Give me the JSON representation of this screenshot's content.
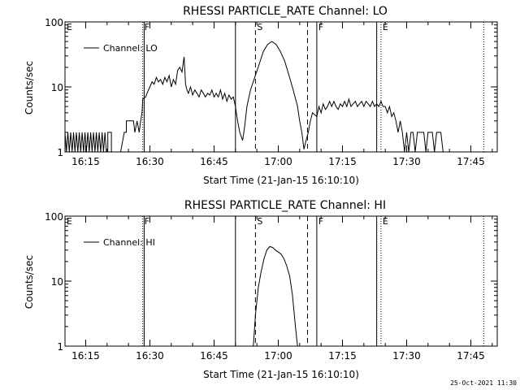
{
  "footer": {
    "timestamp": "25-Oct-2021 11:30"
  },
  "chart_data": [
    {
      "type": "line",
      "title": "RHESSI PARTICLE_RATE Channel: LO",
      "xlabel": "Start Time (21-Jan-15 16:10:10)",
      "ylabel": "Counts/sec",
      "y_scale": "log",
      "ylim": [
        1,
        100
      ],
      "xlim": [
        "16:10:10",
        "17:51:10"
      ],
      "x_ticks": [
        "16:15",
        "16:30",
        "16:45",
        "17:00",
        "17:15",
        "17:30",
        "17:45"
      ],
      "y_ticks": [
        "1",
        "10",
        "100"
      ],
      "legend": {
        "position": "top-left",
        "entries": [
          "Channel: LO"
        ]
      },
      "series": [
        {
          "name": "Channel: LO",
          "points": [
            [
              "16:10:10",
              1
            ],
            [
              "16:10:10",
              2
            ],
            [
              "16:10:30",
              1
            ],
            [
              "16:10:50",
              2
            ],
            [
              "16:11:10",
              1
            ],
            [
              "16:11:30",
              2
            ],
            [
              "16:11:50",
              1
            ],
            [
              "16:12:10",
              2
            ],
            [
              "16:12:30",
              1
            ],
            [
              "16:12:50",
              2
            ],
            [
              "16:13:10",
              1
            ],
            [
              "16:13:30",
              2
            ],
            [
              "16:13:50",
              1
            ],
            [
              "16:14:10",
              2
            ],
            [
              "16:14:30",
              1
            ],
            [
              "16:14:50",
              2
            ],
            [
              "16:15:10",
              1
            ],
            [
              "16:15:30",
              2
            ],
            [
              "16:15:50",
              1
            ],
            [
              "16:16:10",
              2
            ],
            [
              "16:16:30",
              1
            ],
            [
              "16:16:50",
              2
            ],
            [
              "16:17:10",
              1
            ],
            [
              "16:17:30",
              2
            ],
            [
              "16:17:50",
              1
            ],
            [
              "16:18:10",
              2
            ],
            [
              "16:18:30",
              1
            ],
            [
              "16:18:50",
              2
            ],
            [
              "16:19:10",
              1
            ],
            [
              "16:19:30",
              2
            ],
            [
              "16:19:50",
              1
            ],
            [
              "16:20:10",
              1
            ],
            [
              "16:20:10",
              2
            ],
            [
              "16:21:00",
              2
            ],
            [
              "16:21:00",
              1
            ],
            [
              "16:23:10",
              1
            ],
            [
              "16:24:00",
              2
            ],
            [
              "16:24:30",
              2
            ],
            [
              "16:24:30",
              3
            ],
            [
              "16:26:10",
              3
            ],
            [
              "16:26:30",
              2
            ],
            [
              "16:27:00",
              3
            ],
            [
              "16:27:30",
              2
            ],
            [
              "16:27:50",
              3
            ],
            [
              "16:28:10",
              4
            ],
            [
              "16:28:20",
              6.5
            ],
            [
              "16:29:00",
              7
            ],
            [
              "16:29:30",
              8.5
            ],
            [
              "16:30:00",
              10
            ],
            [
              "16:30:30",
              12
            ],
            [
              "16:31:00",
              11
            ],
            [
              "16:31:30",
              14
            ],
            [
              "16:32:00",
              12
            ],
            [
              "16:32:30",
              13
            ],
            [
              "16:33:00",
              11
            ],
            [
              "16:33:30",
              14
            ],
            [
              "16:34:00",
              12
            ],
            [
              "16:34:30",
              15
            ],
            [
              "16:35:00",
              10
            ],
            [
              "16:35:30",
              13
            ],
            [
              "16:36:00",
              11
            ],
            [
              "16:36:30",
              18
            ],
            [
              "16:37:00",
              20
            ],
            [
              "16:37:30",
              17
            ],
            [
              "16:38:00",
              29
            ],
            [
              "16:38:20",
              11
            ],
            [
              "16:38:40",
              9
            ],
            [
              "16:39:00",
              8
            ],
            [
              "16:39:30",
              10
            ],
            [
              "16:40:00",
              7.5
            ],
            [
              "16:40:30",
              9
            ],
            [
              "16:41:00",
              8
            ],
            [
              "16:41:30",
              7
            ],
            [
              "16:42:00",
              9
            ],
            [
              "16:42:30",
              8
            ],
            [
              "16:43:00",
              7
            ],
            [
              "16:43:30",
              8
            ],
            [
              "16:44:00",
              7.5
            ],
            [
              "16:44:30",
              9
            ],
            [
              "16:45:00",
              7
            ],
            [
              "16:45:30",
              8
            ],
            [
              "16:46:00",
              7
            ],
            [
              "16:46:30",
              9
            ],
            [
              "16:47:00",
              6.5
            ],
            [
              "16:47:30",
              8
            ],
            [
              "16:48:00",
              6
            ],
            [
              "16:48:30",
              7.5
            ],
            [
              "16:49:00",
              6.5
            ],
            [
              "16:49:30",
              7
            ],
            [
              "16:50:00",
              5
            ],
            [
              "16:50:30",
              3
            ],
            [
              "16:51:00",
              2
            ],
            [
              "16:51:40",
              1.5
            ],
            [
              "16:52:10",
              2.5
            ],
            [
              "16:52:40",
              5
            ],
            [
              "16:53:30",
              9
            ],
            [
              "16:54:30",
              14
            ],
            [
              "16:55:30",
              22
            ],
            [
              "16:56:30",
              35
            ],
            [
              "16:57:30",
              45
            ],
            [
              "16:58:30",
              50
            ],
            [
              "16:59:30",
              45
            ],
            [
              "17:00:30",
              35
            ],
            [
              "17:01:30",
              25
            ],
            [
              "17:02:30",
              15
            ],
            [
              "17:03:30",
              9
            ],
            [
              "17:04:30",
              5
            ],
            [
              "17:05:00",
              3
            ],
            [
              "17:05:30",
              2
            ],
            [
              "17:06:00",
              1.1
            ],
            [
              "17:06:30",
              1.5
            ],
            [
              "17:07:00",
              2
            ],
            [
              "17:07:30",
              3
            ],
            [
              "17:08:00",
              4
            ],
            [
              "17:09:00",
              3.5
            ],
            [
              "17:09:30",
              5
            ],
            [
              "17:10:00",
              4
            ],
            [
              "17:10:30",
              5.5
            ],
            [
              "17:11:00",
              4.5
            ],
            [
              "17:11:30",
              5
            ],
            [
              "17:12:00",
              6
            ],
            [
              "17:12:30",
              5
            ],
            [
              "17:13:00",
              6
            ],
            [
              "17:13:30",
              5
            ],
            [
              "17:14:00",
              4.5
            ],
            [
              "17:14:30",
              5.5
            ],
            [
              "17:15:00",
              5
            ],
            [
              "17:15:30",
              6
            ],
            [
              "17:16:00",
              5
            ],
            [
              "17:16:30",
              6.5
            ],
            [
              "17:17:00",
              5
            ],
            [
              "17:17:30",
              5.5
            ],
            [
              "17:18:00",
              6
            ],
            [
              "17:18:30",
              5
            ],
            [
              "17:19:00",
              5.5
            ],
            [
              "17:19:30",
              6
            ],
            [
              "17:20:00",
              5
            ],
            [
              "17:20:30",
              6
            ],
            [
              "17:21:00",
              5.5
            ],
            [
              "17:21:30",
              5
            ],
            [
              "17:22:00",
              6
            ],
            [
              "17:22:30",
              5
            ],
            [
              "17:23:00",
              5.5
            ],
            [
              "17:23:30",
              5
            ],
            [
              "17:24:00",
              6
            ],
            [
              "17:24:30",
              5
            ],
            [
              "17:25:00",
              5
            ],
            [
              "17:25:30",
              4
            ],
            [
              "17:26:00",
              5
            ],
            [
              "17:26:30",
              3.5
            ],
            [
              "17:27:00",
              4
            ],
            [
              "17:27:30",
              3
            ],
            [
              "17:28:00",
              2
            ],
            [
              "17:28:30",
              3
            ],
            [
              "17:29:00",
              2
            ],
            [
              "17:29:30",
              1
            ],
            [
              "17:30:00",
              2
            ],
            [
              "17:30:30",
              1
            ],
            [
              "17:31:00",
              2
            ],
            [
              "17:31:30",
              2
            ],
            [
              "17:32:00",
              1
            ],
            [
              "17:32:30",
              2
            ],
            [
              "17:33:00",
              2
            ],
            [
              "17:34:00",
              2
            ],
            [
              "17:34:30",
              1
            ],
            [
              "17:35:00",
              2
            ],
            [
              "17:36:00",
              2
            ],
            [
              "17:36:30",
              1
            ],
            [
              "17:37:00",
              2
            ],
            [
              "17:38:00",
              2
            ],
            [
              "17:38:30",
              1
            ]
          ]
        }
      ],
      "annotations": [
        {
          "label": "E",
          "time": "16:10:10",
          "style": "dotted"
        },
        {
          "label": "F",
          "time": "16:28:20",
          "style": "dotted"
        },
        {
          "label": "",
          "time": "16:28:40",
          "style": "solid"
        },
        {
          "label": "",
          "time": "16:50:00",
          "style": "solid"
        },
        {
          "label": "S",
          "time": "16:54:40",
          "style": "dashed"
        },
        {
          "label": "",
          "time": "17:06:50",
          "style": "dashed"
        },
        {
          "label": "F",
          "time": "17:09:00",
          "style": "solid"
        },
        {
          "label": "",
          "time": "17:23:00",
          "style": "solid"
        },
        {
          "label": "E",
          "time": "17:24:00",
          "style": "dotted"
        },
        {
          "label": "",
          "time": "17:48:00",
          "style": "dotted"
        }
      ]
    },
    {
      "type": "line",
      "title": "RHESSI PARTICLE_RATE Channel: HI",
      "xlabel": "Start Time (21-Jan-15 16:10:10)",
      "ylabel": "Counts/sec",
      "y_scale": "log",
      "ylim": [
        1,
        100
      ],
      "xlim": [
        "16:10:10",
        "17:51:10"
      ],
      "x_ticks": [
        "16:15",
        "16:30",
        "16:45",
        "17:00",
        "17:15",
        "17:30",
        "17:45"
      ],
      "y_ticks": [
        "1",
        "10",
        "100"
      ],
      "legend": {
        "position": "top-left",
        "entries": [
          "Channel: HI"
        ]
      },
      "series": [
        {
          "name": "Channel: HI",
          "points": [
            [
              "16:54:10",
              1
            ],
            [
              "16:54:40",
              3
            ],
            [
              "16:55:20",
              8
            ],
            [
              "16:56:00",
              14
            ],
            [
              "16:56:40",
              22
            ],
            [
              "16:57:20",
              30
            ],
            [
              "16:58:00",
              34
            ],
            [
              "16:58:40",
              33
            ],
            [
              "16:59:20",
              30
            ],
            [
              "17:00:00",
              28
            ],
            [
              "17:00:40",
              26
            ],
            [
              "17:01:20",
              22
            ],
            [
              "17:02:00",
              17
            ],
            [
              "17:02:40",
              12
            ],
            [
              "17:03:20",
              6
            ],
            [
              "17:04:00",
              2
            ],
            [
              "17:04:30",
              1
            ]
          ]
        }
      ],
      "annotations": [
        {
          "label": "E",
          "time": "16:10:10",
          "style": "dotted"
        },
        {
          "label": "F",
          "time": "16:28:20",
          "style": "dotted"
        },
        {
          "label": "",
          "time": "16:28:40",
          "style": "solid"
        },
        {
          "label": "",
          "time": "16:50:00",
          "style": "solid"
        },
        {
          "label": "S",
          "time": "16:54:40",
          "style": "dashed"
        },
        {
          "label": "",
          "time": "17:06:50",
          "style": "dashed"
        },
        {
          "label": "F",
          "time": "17:09:00",
          "style": "solid"
        },
        {
          "label": "",
          "time": "17:23:00",
          "style": "solid"
        },
        {
          "label": "E",
          "time": "17:24:00",
          "style": "dotted"
        },
        {
          "label": "",
          "time": "17:48:00",
          "style": "dotted"
        }
      ]
    }
  ]
}
